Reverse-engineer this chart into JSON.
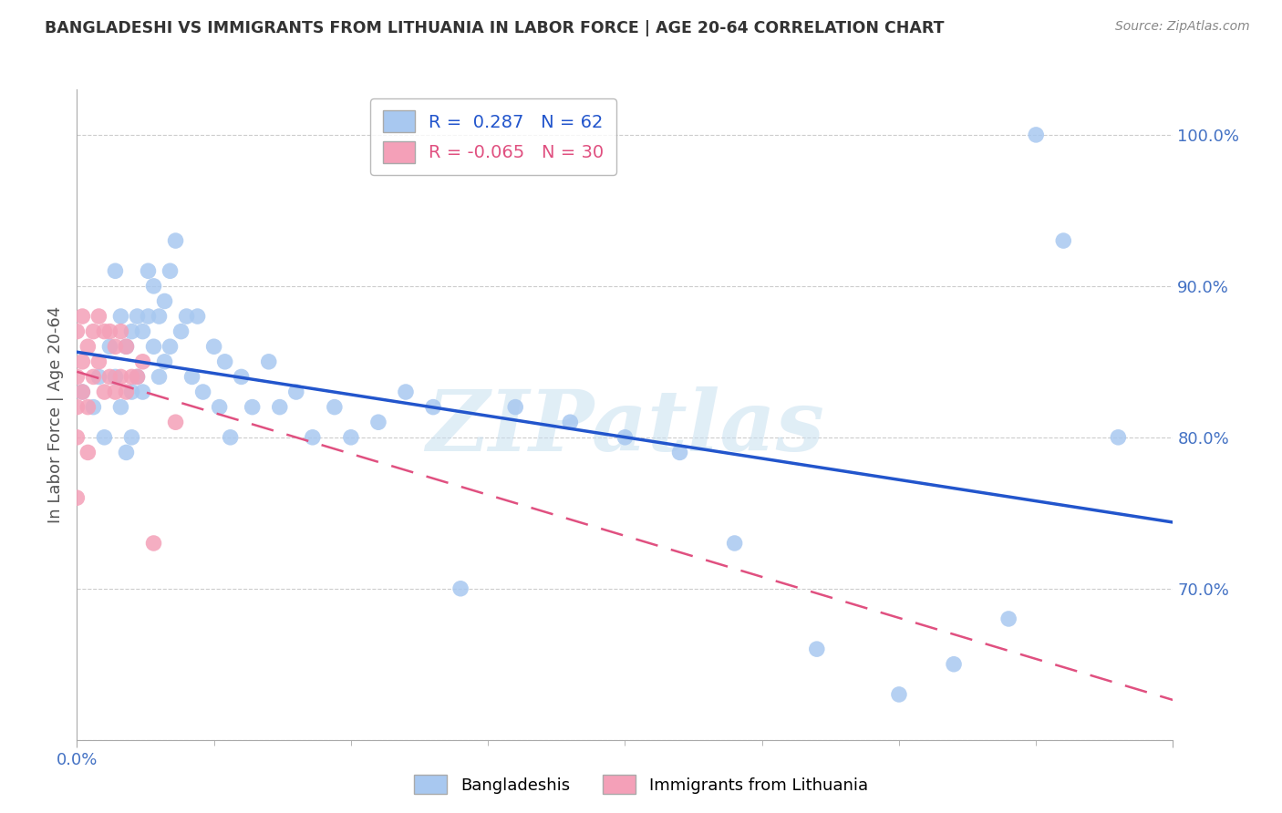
{
  "title": "BANGLADESHI VS IMMIGRANTS FROM LITHUANIA IN LABOR FORCE | AGE 20-64 CORRELATION CHART",
  "source": "Source: ZipAtlas.com",
  "ylabel": "In Labor Force | Age 20-64",
  "watermark": "ZIPatlas",
  "legend_labels": [
    "Bangladeshis",
    "Immigrants from Lithuania"
  ],
  "blue_color": "#A8C8F0",
  "pink_color": "#F4A0B8",
  "blue_line_color": "#2255CC",
  "pink_line_color": "#E05080",
  "grid_color": "#CCCCCC",
  "title_color": "#333333",
  "tick_color": "#4472C4",
  "blue_R": 0.287,
  "blue_N": 62,
  "pink_R": -0.065,
  "pink_N": 30,
  "xlim": [
    0.0,
    0.2
  ],
  "ylim": [
    0.6,
    1.03
  ],
  "xtick_vals": [
    0.0,
    0.05,
    0.1,
    0.15,
    0.2
  ],
  "xtick_labels": [
    "0.0%",
    "",
    "",
    "",
    ""
  ],
  "ytick_vals": [
    0.6,
    0.7,
    0.8,
    0.9,
    1.0
  ],
  "ytick_labels": [
    "",
    "70.0%",
    "80.0%",
    "90.0%",
    "100.0%"
  ],
  "blue_x": [
    0.001,
    0.003,
    0.004,
    0.005,
    0.006,
    0.007,
    0.007,
    0.008,
    0.008,
    0.009,
    0.009,
    0.01,
    0.01,
    0.01,
    0.011,
    0.011,
    0.012,
    0.012,
    0.013,
    0.013,
    0.014,
    0.014,
    0.015,
    0.015,
    0.016,
    0.016,
    0.017,
    0.017,
    0.018,
    0.019,
    0.02,
    0.021,
    0.022,
    0.023,
    0.025,
    0.026,
    0.027,
    0.028,
    0.03,
    0.032,
    0.035,
    0.037,
    0.04,
    0.043,
    0.047,
    0.05,
    0.055,
    0.06,
    0.065,
    0.07,
    0.08,
    0.09,
    0.1,
    0.11,
    0.12,
    0.135,
    0.15,
    0.16,
    0.17,
    0.175,
    0.18,
    0.19
  ],
  "blue_y": [
    0.83,
    0.82,
    0.84,
    0.8,
    0.86,
    0.84,
    0.91,
    0.88,
    0.82,
    0.86,
    0.79,
    0.83,
    0.87,
    0.8,
    0.88,
    0.84,
    0.87,
    0.83,
    0.91,
    0.88,
    0.9,
    0.86,
    0.88,
    0.84,
    0.89,
    0.85,
    0.91,
    0.86,
    0.93,
    0.87,
    0.88,
    0.84,
    0.88,
    0.83,
    0.86,
    0.82,
    0.85,
    0.8,
    0.84,
    0.82,
    0.85,
    0.82,
    0.83,
    0.8,
    0.82,
    0.8,
    0.81,
    0.83,
    0.82,
    0.7,
    0.82,
    0.81,
    0.8,
    0.79,
    0.73,
    0.66,
    0.63,
    0.65,
    0.68,
    1.0,
    0.93,
    0.8
  ],
  "pink_x": [
    0.0,
    0.0,
    0.0,
    0.0,
    0.0,
    0.001,
    0.001,
    0.001,
    0.002,
    0.002,
    0.002,
    0.003,
    0.003,
    0.004,
    0.004,
    0.005,
    0.005,
    0.006,
    0.006,
    0.007,
    0.007,
    0.008,
    0.008,
    0.009,
    0.009,
    0.01,
    0.011,
    0.012,
    0.014,
    0.018
  ],
  "pink_y": [
    0.87,
    0.84,
    0.82,
    0.8,
    0.76,
    0.88,
    0.85,
    0.83,
    0.86,
    0.82,
    0.79,
    0.87,
    0.84,
    0.88,
    0.85,
    0.87,
    0.83,
    0.87,
    0.84,
    0.86,
    0.83,
    0.87,
    0.84,
    0.86,
    0.83,
    0.84,
    0.84,
    0.85,
    0.73,
    0.81
  ]
}
